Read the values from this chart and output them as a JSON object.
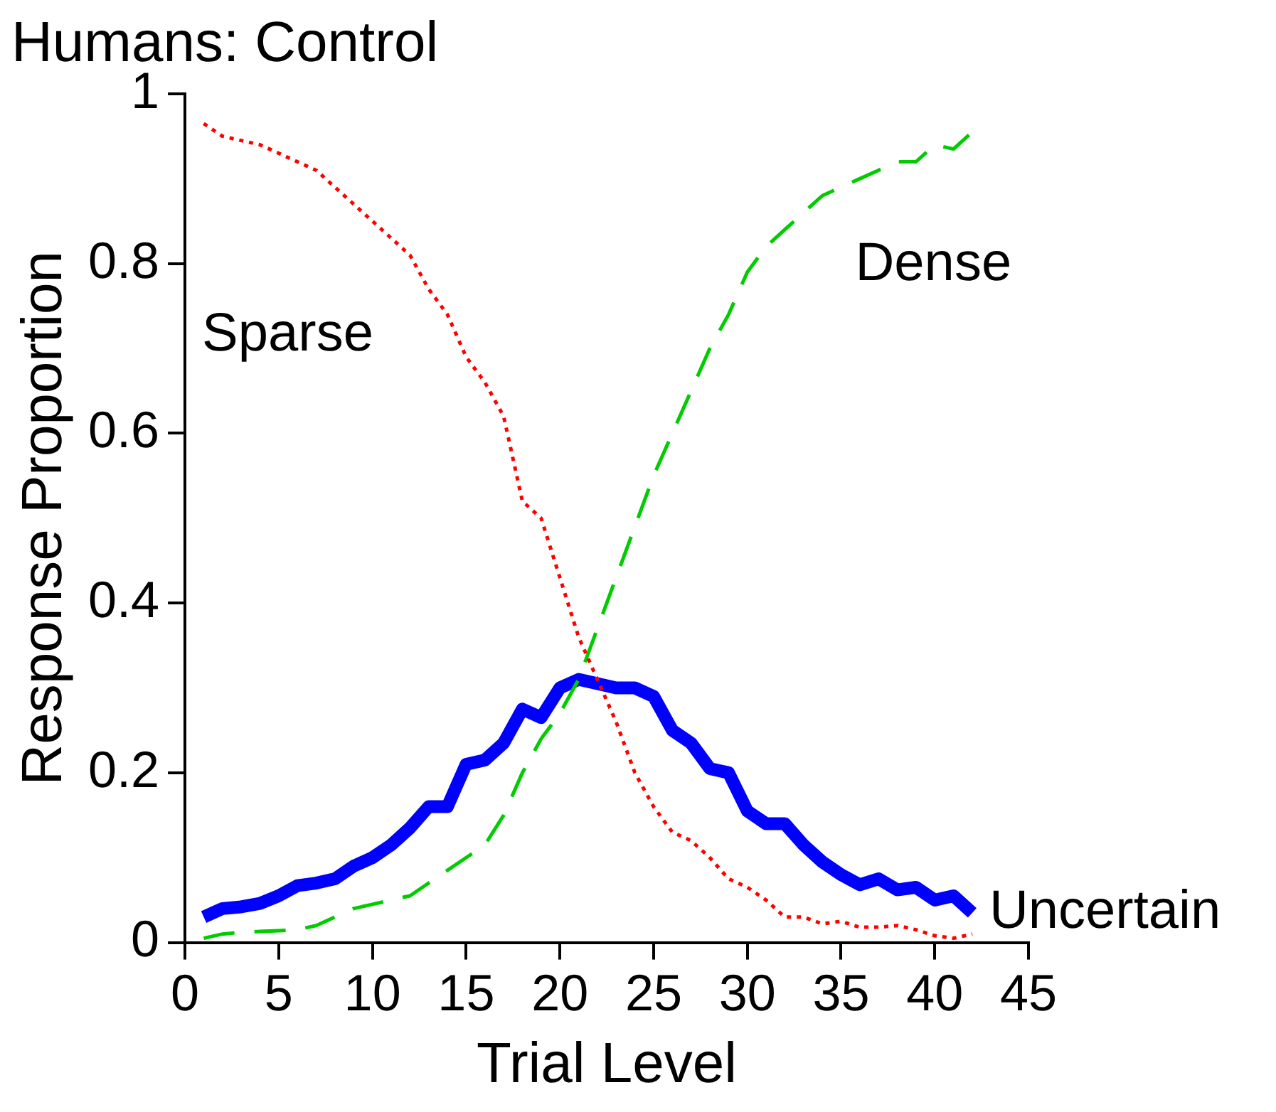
{
  "chart_data": {
    "type": "line",
    "title": "Humans: Control",
    "xlabel": "Trial Level",
    "ylabel": "Response Proportion",
    "x": [
      1,
      2,
      3,
      4,
      5,
      6,
      7,
      8,
      9,
      10,
      11,
      12,
      13,
      14,
      15,
      16,
      17,
      18,
      19,
      20,
      21,
      22,
      23,
      24,
      25,
      26,
      27,
      28,
      29,
      30,
      31,
      32,
      33,
      34,
      35,
      36,
      37,
      38,
      39,
      40,
      41,
      42
    ],
    "series": [
      {
        "name": "Sparse",
        "color": "#ff0000",
        "line_style": "dotted",
        "values": [
          0.965,
          0.95,
          0.945,
          0.94,
          0.93,
          0.92,
          0.91,
          0.89,
          0.87,
          0.85,
          0.83,
          0.81,
          0.77,
          0.74,
          0.69,
          0.66,
          0.62,
          0.52,
          0.5,
          0.43,
          0.36,
          0.31,
          0.26,
          0.2,
          0.16,
          0.13,
          0.12,
          0.1,
          0.075,
          0.065,
          0.05,
          0.03,
          0.03,
          0.022,
          0.025,
          0.018,
          0.018,
          0.02,
          0.015,
          0.008,
          0.005,
          0.01
        ]
      },
      {
        "name": "Dense",
        "color": "#00cc00",
        "line_style": "dashed",
        "values": [
          0.005,
          0.01,
          0.012,
          0.013,
          0.014,
          0.015,
          0.02,
          0.03,
          0.04,
          0.045,
          0.05,
          0.055,
          0.07,
          0.085,
          0.1,
          0.115,
          0.15,
          0.2,
          0.24,
          0.27,
          0.31,
          0.37,
          0.43,
          0.49,
          0.55,
          0.6,
          0.65,
          0.7,
          0.74,
          0.79,
          0.82,
          0.84,
          0.86,
          0.88,
          0.89,
          0.9,
          0.91,
          0.92,
          0.92,
          0.94,
          0.935,
          0.955
        ]
      },
      {
        "name": "Uncertain",
        "color": "#0000ff",
        "line_style": "solid",
        "values": [
          0.03,
          0.04,
          0.042,
          0.046,
          0.055,
          0.067,
          0.07,
          0.075,
          0.09,
          0.1,
          0.115,
          0.135,
          0.16,
          0.16,
          0.21,
          0.215,
          0.235,
          0.275,
          0.265,
          0.3,
          0.31,
          0.305,
          0.3,
          0.3,
          0.29,
          0.25,
          0.235,
          0.205,
          0.2,
          0.155,
          0.14,
          0.14,
          0.115,
          0.095,
          0.08,
          0.068,
          0.075,
          0.062,
          0.065,
          0.05,
          0.055,
          0.035
        ]
      }
    ],
    "xlim": [
      0,
      45
    ],
    "xticks": [
      0,
      5,
      10,
      15,
      20,
      25,
      30,
      35,
      40,
      45
    ],
    "ylim": [
      0,
      1
    ],
    "yticks": [
      0,
      0.2,
      0.4,
      0.6,
      0.8,
      1
    ],
    "grid": false,
    "legend": false,
    "marker": "none"
  }
}
